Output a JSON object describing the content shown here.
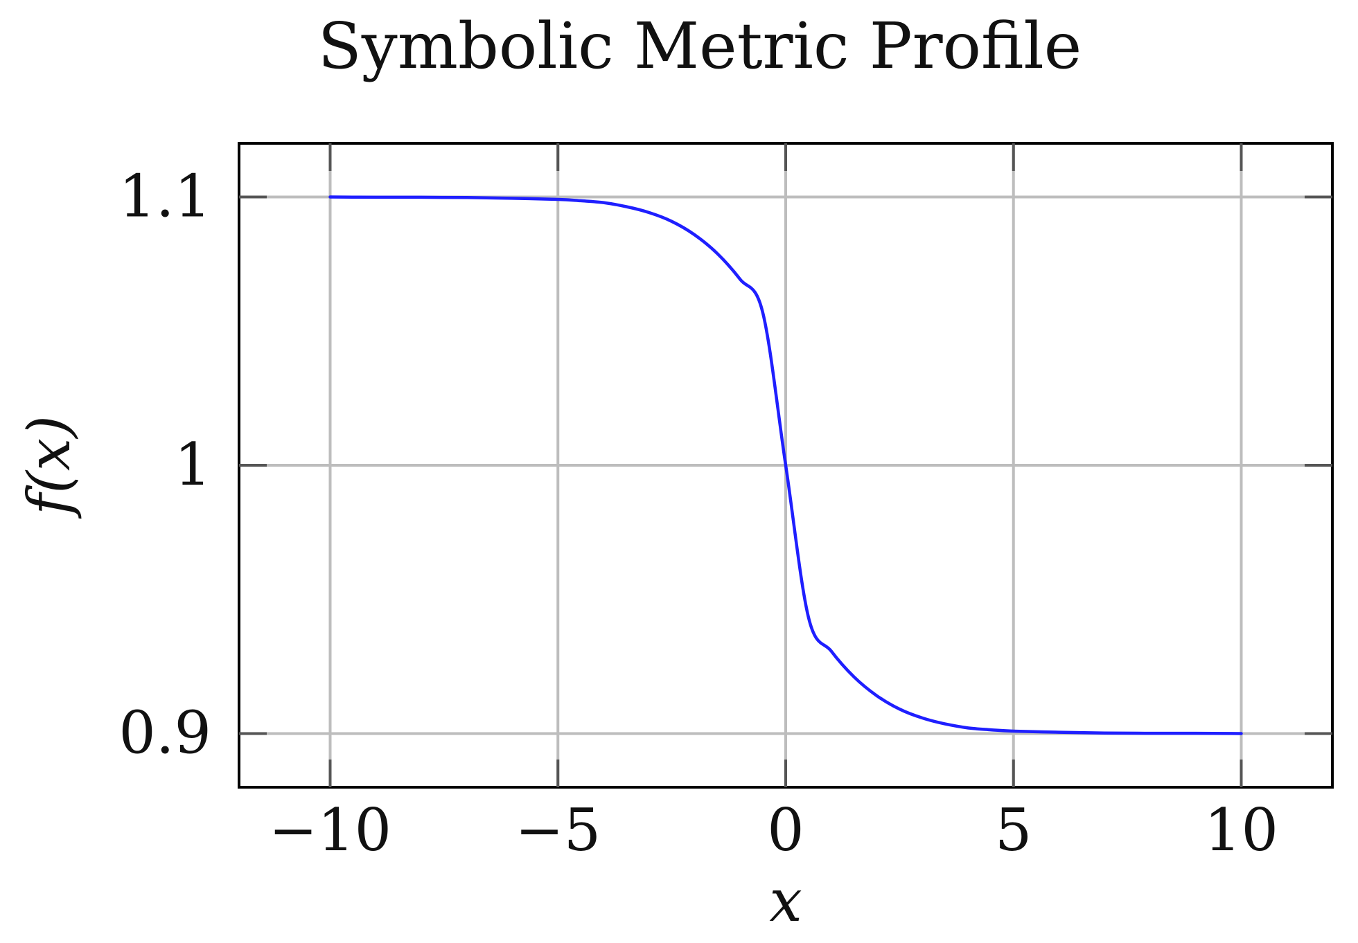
{
  "chart_data": {
    "type": "line",
    "title": "Symbolic Metric Profile",
    "xlabel": "x",
    "ylabel": "f(x)",
    "xlim": [
      -12,
      12
    ],
    "ylim": [
      0.88,
      1.12
    ],
    "xticks": [
      -10,
      -5,
      0,
      5,
      10
    ],
    "xtick_labels": [
      "−10",
      "−5",
      "0",
      "5",
      "10"
    ],
    "yticks": [
      0.9,
      1.0,
      1.1
    ],
    "ytick_labels": [
      "0.9",
      "1",
      "1.1"
    ],
    "grid": true,
    "legend": "none",
    "series": [
      {
        "color": "#1f1fff",
        "x": [
          -10,
          -9,
          -8,
          -7,
          -6,
          -5,
          -4.5,
          -4,
          -3.5,
          -3,
          -2.5,
          -2,
          -1.5,
          -1,
          -0.5,
          0,
          0.5,
          1,
          1.5,
          2,
          2.5,
          3,
          3.5,
          4,
          4.5,
          5,
          6,
          7,
          8,
          9,
          10
        ],
        "y": [
          1.1,
          1.0999,
          1.0999,
          1.0998,
          1.0995,
          1.0991,
          1.0986,
          1.0979,
          1.0964,
          1.0942,
          1.0909,
          1.0859,
          1.0789,
          1.0693,
          1.0567,
          1.0,
          0.9433,
          0.9307,
          0.9211,
          0.9141,
          0.9091,
          0.9058,
          0.9036,
          0.9021,
          0.9014,
          0.9009,
          0.9005,
          0.9002,
          0.9001,
          0.9001,
          0.9
        ]
      }
    ]
  }
}
